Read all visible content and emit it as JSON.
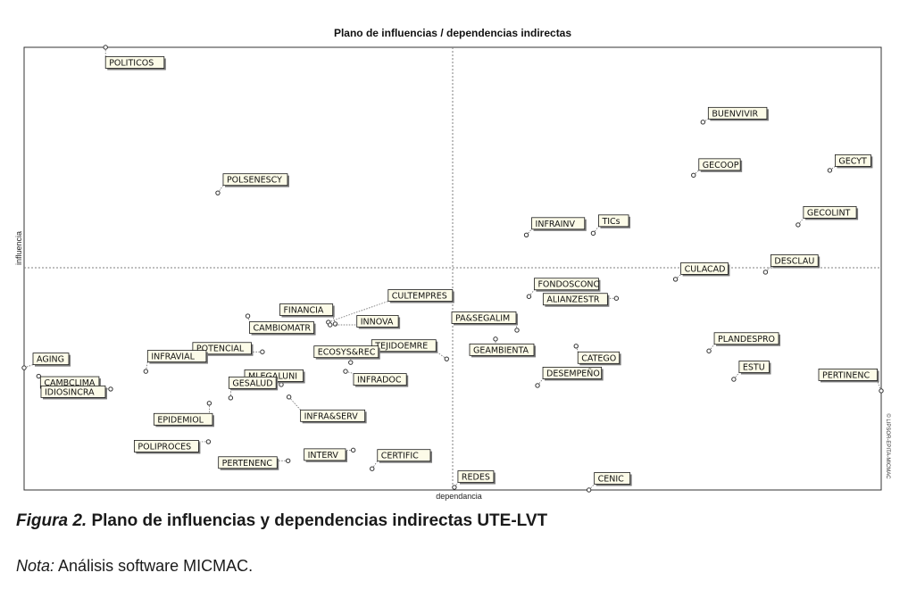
{
  "chart_data": {
    "type": "scatter",
    "title": "Plano de influencias / dependencias indirectas",
    "xlabel": "dependancia",
    "ylabel": "influencia",
    "side_label": "© LIPSOR-EPITA-MICMAC",
    "xlim": [
      0,
      100
    ],
    "ylim": [
      0,
      100
    ],
    "quadrant_x": 50,
    "quadrant_y": 50,
    "grid": false,
    "points": [
      {
        "label": "POLITICOS",
        "x": 9.5,
        "y": 100
      },
      {
        "label": "BUENVIVIR",
        "x": 79.2,
        "y": 83.1
      },
      {
        "label": "GECOOP",
        "x": 78.1,
        "y": 71.1
      },
      {
        "label": "GECYT",
        "x": 94.0,
        "y": 72.2
      },
      {
        "label": "POLSENESCY",
        "x": 22.6,
        "y": 67.1
      },
      {
        "label": "GECOLINT",
        "x": 90.3,
        "y": 59.9
      },
      {
        "label": "INFRAINV",
        "x": 58.6,
        "y": 57.6
      },
      {
        "label": "TICs",
        "x": 66.4,
        "y": 58.0
      },
      {
        "label": "CULACAD",
        "x": 76.0,
        "y": 47.6
      },
      {
        "label": "DESCLAU",
        "x": 86.5,
        "y": 49.2
      },
      {
        "label": "FONDOSCONC",
        "x": 58.9,
        "y": 43.7
      },
      {
        "label": "ALIANZESTR",
        "x": 69.1,
        "y": 43.3
      },
      {
        "label": "CULTEMPRES",
        "x": 35.5,
        "y": 37.9
      },
      {
        "label": "FINANCIA",
        "x": 36.3,
        "y": 37.5
      },
      {
        "label": "CAMBIOMATR",
        "x": 26.1,
        "y": 39.3
      },
      {
        "label": "INNOVA",
        "x": 35.7,
        "y": 37.3
      },
      {
        "label": "PA&SEGALIM",
        "x": 57.5,
        "y": 36.1
      },
      {
        "label": "CATEGO",
        "x": 64.4,
        "y": 32.5
      },
      {
        "label": "POTENCIAL",
        "x": 27.8,
        "y": 31.2
      },
      {
        "label": "TEJIDOEMRE",
        "x": 49.3,
        "y": 29.6
      },
      {
        "label": "ECOSYS&REC",
        "x": 38.1,
        "y": 28.8
      },
      {
        "label": "GEAMBIENTA",
        "x": 55.0,
        "y": 34.1
      },
      {
        "label": "PLANDESPRO",
        "x": 79.9,
        "y": 31.4
      },
      {
        "label": "INFRAVIAL",
        "x": 14.2,
        "y": 26.8
      },
      {
        "label": "AGING",
        "x": 0,
        "y": 27.6
      },
      {
        "label": "CAMBCLIMA",
        "x": 1.7,
        "y": 25.7
      },
      {
        "label": "IDIOSINCRA",
        "x": 10.1,
        "y": 22.8
      },
      {
        "label": "MLEGALUNI",
        "x": 30.0,
        "y": 23.8
      },
      {
        "label": "INFRADOC",
        "x": 37.5,
        "y": 26.8
      },
      {
        "label": "GESALUD",
        "x": 24.1,
        "y": 20.8
      },
      {
        "label": "INFRA&SERV",
        "x": 30.9,
        "y": 21.0
      },
      {
        "label": "ESTU",
        "x": 82.8,
        "y": 25.0
      },
      {
        "label": "DESEMPEÑO",
        "x": 59.9,
        "y": 23.6
      },
      {
        "label": "PERTINENC",
        "x": 100,
        "y": 22.4
      },
      {
        "label": "EPIDEMIOL",
        "x": 21.6,
        "y": 19.6
      },
      {
        "label": "POLIPROCES",
        "x": 21.5,
        "y": 10.9
      },
      {
        "label": "PERTENENC",
        "x": 30.8,
        "y": 6.6
      },
      {
        "label": "INTERV",
        "x": 38.4,
        "y": 9.0
      },
      {
        "label": "CERTIFIC",
        "x": 40.6,
        "y": 4.8
      },
      {
        "label": "REDES",
        "x": 50.2,
        "y": 0.6
      },
      {
        "label": "CENIC",
        "x": 65.9,
        "y": 0
      }
    ]
  },
  "caption": {
    "figure_label": "Figura 2.",
    "figure_text": " Plano de influencias y dependencias indirectas UTE-LVT"
  },
  "note": {
    "label": "Nota:",
    "text": " Análisis software MICMAC."
  },
  "colors": {
    "label_fill": "#fcfbe8",
    "label_border": "#1a1a1a",
    "label_shadow": "#7a7a7a",
    "axis_line": "#7f7f7f",
    "leader": "#555555"
  }
}
